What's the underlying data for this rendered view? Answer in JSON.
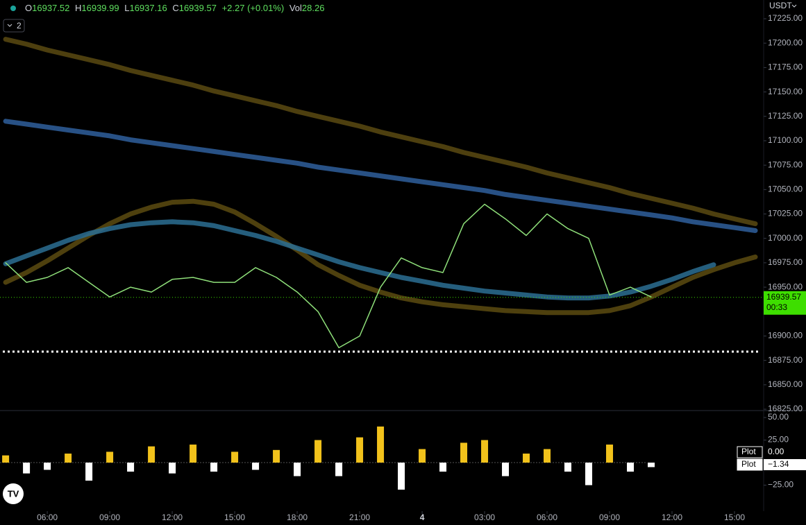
{
  "header": {
    "open_label": "O",
    "open": "16937.52",
    "high_label": "H",
    "high": "16939.99",
    "low_label": "L",
    "low": "16937.16",
    "close_label": "C",
    "close": "16939.57",
    "change": "+2.27 (+0.01%)",
    "volume_label": "Vol",
    "volume": "28.26",
    "currency": "USDT",
    "indicator_count": "2"
  },
  "chart_data": [
    {
      "type": "line",
      "x": [
        4,
        5,
        6,
        7,
        8,
        9,
        10,
        11,
        12,
        13,
        14,
        15,
        16,
        17,
        18,
        19,
        20,
        21,
        22,
        23,
        24,
        25,
        26,
        27,
        28,
        29,
        30,
        31,
        32,
        33,
        34,
        35,
        36,
        37,
        38,
        39,
        40
      ],
      "xlim": [
        3.73,
        40.4
      ],
      "xticks": [
        {
          "value": 6,
          "label": "06:00"
        },
        {
          "value": 9,
          "label": "09:00"
        },
        {
          "value": 12,
          "label": "12:00"
        },
        {
          "value": 15,
          "label": "15:00"
        },
        {
          "value": 18,
          "label": "18:00"
        },
        {
          "value": 21,
          "label": "21:00"
        },
        {
          "value": 24,
          "label": "4"
        },
        {
          "value": 27,
          "label": "03:00"
        },
        {
          "value": 30,
          "label": "06:00"
        },
        {
          "value": 33,
          "label": "09:00"
        },
        {
          "value": 36,
          "label": "12:00"
        },
        {
          "value": 39,
          "label": "15:00"
        }
      ],
      "ylim": [
        16823.6,
        17244.2
      ],
      "yticks": [
        {
          "value": 17225,
          "label": "17225.00"
        },
        {
          "value": 17200,
          "label": "17200.00"
        },
        {
          "value": 17175,
          "label": "17175.00"
        },
        {
          "value": 17150,
          "label": "17150.00"
        },
        {
          "value": 17125,
          "label": "17125.00"
        },
        {
          "value": 17100,
          "label": "17100.00"
        },
        {
          "value": 17075,
          "label": "17075.00"
        },
        {
          "value": 17050,
          "label": "17050.00"
        },
        {
          "value": 17025,
          "label": "17025.00"
        },
        {
          "value": 17000,
          "label": "17000.00"
        },
        {
          "value": 16975,
          "label": "16975.00"
        },
        {
          "value": 16950,
          "label": "16950.00"
        },
        {
          "value": 16925,
          "label": "16925.00"
        },
        {
          "value": 16900,
          "label": "16900.00"
        },
        {
          "value": 16875,
          "label": "16875.00"
        },
        {
          "value": 16850,
          "label": "16850.00"
        },
        {
          "value": 16825,
          "label": "16825.00"
        }
      ],
      "series": [
        {
          "color": "#5a4a12",
          "width": 7,
          "values": [
            17204,
            17199,
            17193,
            17188,
            17183,
            17178,
            17172,
            17167,
            17162,
            17157,
            17151,
            17146,
            17141,
            17136,
            17130,
            17125,
            17120,
            17115,
            17109,
            17104,
            17099,
            17094,
            17088,
            17083,
            17078,
            17073,
            17067,
            17062,
            17057,
            17052,
            17046,
            17041,
            17036,
            17031,
            17025,
            17020,
            17015
          ]
        },
        {
          "color": "#2f5f9c",
          "width": 7,
          "values": [
            17120,
            17117,
            17114,
            17111,
            17108,
            17105,
            17101,
            17098,
            17095,
            17092,
            17089,
            17086,
            17083,
            17080,
            17077,
            17073,
            17070,
            17067,
            17064,
            17061,
            17058,
            17055,
            17052,
            17049,
            17045,
            17042,
            17039,
            17036,
            17033,
            17030,
            17027,
            17024,
            17021,
            17017,
            17014,
            17011,
            17008
          ]
        },
        {
          "color": "#5c4b10",
          "width": 7,
          "values": [
            16955,
            16965,
            16977,
            16990,
            17003,
            17015,
            17025,
            17032,
            17037,
            17038,
            17035,
            17027,
            17015,
            17002,
            16988,
            16973,
            16962,
            16952,
            16945,
            16939,
            16935,
            16932,
            16930,
            16928,
            16926,
            16925,
            16924,
            16924,
            16924,
            16926,
            16931,
            16940,
            16950,
            16960,
            16968,
            16975,
            16981
          ]
        },
        {
          "color": "#2c6e93",
          "width": 7,
          "values": [
            16974,
            16982,
            16990,
            16998,
            17005,
            17010,
            17014,
            17016,
            17017,
            17016,
            17013,
            17008,
            17003,
            16997,
            16990,
            16983,
            16976,
            16970,
            16965,
            16960,
            16956,
            16952,
            16949,
            16946,
            16944,
            16942,
            16940,
            16939,
            16939,
            16941,
            16945,
            16951,
            16958,
            16966,
            16973,
            null,
            null
          ]
        },
        {
          "color": "#8fe07a",
          "width": 1.5,
          "values": [
            16975,
            16955,
            16960,
            16970,
            16955,
            16940,
            16950,
            16945,
            16958,
            16960,
            16955,
            16955,
            16970,
            16960,
            16945,
            16925,
            16888,
            16900,
            16950,
            16980,
            16970,
            16965,
            17015,
            17035,
            17020,
            17003,
            17025,
            17010,
            17000,
            16942,
            16950,
            16940,
            null,
            null,
            null,
            null,
            null
          ]
        }
      ],
      "hline": 16884,
      "last_price": 16939.57,
      "countdown": "00:33"
    },
    {
      "type": "bar",
      "x": [
        4,
        5,
        6,
        7,
        8,
        9,
        10,
        11,
        12,
        13,
        14,
        15,
        16,
        17,
        18,
        19,
        20,
        21,
        22,
        23,
        24,
        25,
        26,
        27,
        28,
        29,
        30,
        31,
        32,
        33,
        34,
        35,
        36,
        37,
        38,
        39,
        40
      ],
      "xlim": [
        3.73,
        40.4
      ],
      "ylim": [
        -53.8,
        57.7
      ],
      "yticks": [
        {
          "value": 50,
          "label": "50.00"
        },
        {
          "value": 25,
          "label": "25.00"
        },
        {
          "value": -25,
          "label": "−25.00"
        }
      ],
      "positive_color": "#f2c21b",
      "negative_color": "#ffffff",
      "values": [
        8,
        -12,
        -8,
        10,
        -20,
        12,
        -10,
        18,
        -12,
        20,
        -10,
        12,
        -8,
        14,
        -15,
        25,
        -15,
        28,
        40,
        -30,
        15,
        -10,
        22,
        25,
        -15,
        10,
        15,
        -10,
        -25,
        20,
        -10,
        -5,
        null,
        null,
        null,
        null,
        null
      ],
      "legend": [
        {
          "name": "Plot",
          "value": "0.00"
        },
        {
          "name": "Plot",
          "value": "−1.34"
        }
      ]
    }
  ]
}
